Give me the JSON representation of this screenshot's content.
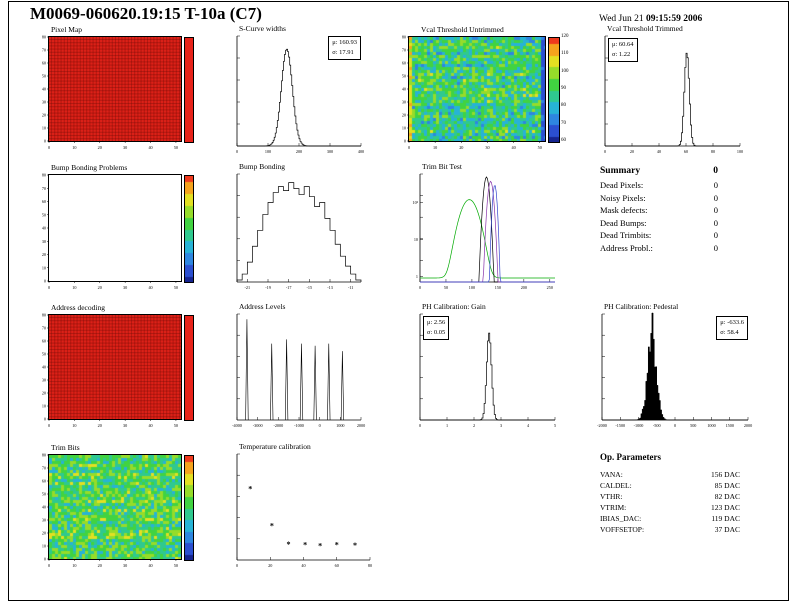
{
  "header": {
    "title": "M0069-060620.19:15 T-10a (C7)",
    "date_prefix": "Wed Jun 21 ",
    "time": "09:15:59 2006"
  },
  "colors": {
    "palette": [
      "#16248f",
      "#2b4fd0",
      "#2e86e0",
      "#27b3d6",
      "#2fc98f",
      "#41d341",
      "#96dc2a",
      "#e3e022",
      "#f5a31d",
      "#ef3a1d"
    ],
    "map_red": "#e8231a",
    "accent_black": "#000000"
  },
  "panels": {
    "pixel_map": {
      "title": "Pixel Map"
    },
    "scurve_widths": {
      "title": "S-Curve widths",
      "stats": {
        "mu": "μ: 160.93",
        "sigma": "σ: 17.91"
      }
    },
    "vcal_untrimmed": {
      "title": "Vcal Threshold Untrimmed"
    },
    "vcal_trimmed": {
      "title": "Vcal Threshold Trimmed",
      "stats": {
        "mu": "μ: 60.64",
        "sigma": "σ: 1.22"
      }
    },
    "bump_problems": {
      "title": "Bump Bonding Problems"
    },
    "bump_bonding": {
      "title": "Bump Bonding"
    },
    "trim_bit_test": {
      "title": "Trim Bit Test"
    },
    "address_decoding": {
      "title": "Address decoding"
    },
    "address_levels": {
      "title": "Address Levels"
    },
    "ph_gain": {
      "title": "PH Calibration: Gain",
      "stats": {
        "mu": "μ: 2.56",
        "sigma": "σ: 0.05"
      }
    },
    "ph_pedestal": {
      "title": "PH Calibration: Pedestal",
      "stats": {
        "mu": "μ: -633.6",
        "sigma": "σ: 58.4"
      }
    },
    "trim_bits": {
      "title": "Trim Bits"
    },
    "temp_cal": {
      "title": "Temperature calibration"
    }
  },
  "summary": {
    "title": "Summary",
    "total": "0",
    "rows": [
      {
        "label": "Dead Pixels:",
        "value": "0"
      },
      {
        "label": "Noisy Pixels:",
        "value": "0"
      },
      {
        "label": "Mask defects:",
        "value": "0"
      },
      {
        "label": "Dead Bumps:",
        "value": "0"
      },
      {
        "label": "Dead Trimbits:",
        "value": "0"
      },
      {
        "label": "Address Probl.:",
        "value": "0"
      }
    ]
  },
  "op_parameters": {
    "title": "Op. Parameters",
    "rows": [
      {
        "label": "VANA:",
        "value": "156 DAC"
      },
      {
        "label": "CALDEL:",
        "value": "85 DAC"
      },
      {
        "label": "VTHR:",
        "value": "82 DAC"
      },
      {
        "label": "VTRIM:",
        "value": "123 DAC"
      },
      {
        "label": "IBIAS_DAC:",
        "value": "119 DAC"
      },
      {
        "label": "VOFFSETOP:",
        "value": "37 DAC"
      }
    ]
  },
  "chart_data": [
    {
      "id": "pixel_map",
      "type": "heatmap",
      "style": "red",
      "title": "Pixel Map",
      "xlim": [
        0,
        52
      ],
      "ylim": [
        0,
        80
      ],
      "xticks": [
        0,
        10,
        20,
        30,
        40,
        50
      ],
      "yticks": [
        0,
        10,
        20,
        30,
        40,
        50,
        60,
        70,
        80
      ],
      "colorbar_style": "red"
    },
    {
      "id": "scurve",
      "type": "hist",
      "title": "S-Curve widths",
      "mu": 160.93,
      "sigma": 17.91,
      "xlim": [
        0,
        400
      ],
      "xticks": [
        0,
        100,
        200,
        300,
        400
      ],
      "peak": 0.88
    },
    {
      "id": "vcal_untrimmed",
      "type": "heatmap",
      "style": "noise",
      "title": "Vcal Threshold Untrimmed",
      "seed": 7,
      "base": 0.48,
      "spread": 0.42,
      "left_band": true,
      "right_band": true,
      "xlim": [
        0,
        52
      ],
      "ylim": [
        0,
        80
      ],
      "xticks": [
        0,
        10,
        20,
        30,
        40,
        50
      ],
      "yticks": [
        0,
        10,
        20,
        30,
        40,
        50,
        60,
        70,
        80
      ],
      "colorbar_style": "rainbow",
      "colorbar_ticks": [
        120,
        110,
        100,
        90,
        80,
        70,
        60
      ]
    },
    {
      "id": "vcal_trimmed",
      "type": "hist",
      "title": "Vcal Threshold Trimmed",
      "mu": 60.64,
      "sigma": 1.22,
      "draw_sigma": 1.8,
      "xlim": [
        0,
        100
      ],
      "xticks": [
        0,
        20,
        40,
        60,
        80,
        100
      ],
      "peak": 0.85
    },
    {
      "id": "bump_problems",
      "type": "heatmap",
      "style": "empty",
      "title": "Bump Bonding Problems",
      "xlim": [
        0,
        52
      ],
      "ylim": [
        0,
        80
      ],
      "xticks": [
        0,
        10,
        20,
        30,
        40,
        50
      ],
      "yticks": [
        0,
        10,
        20,
        30,
        40,
        50,
        60,
        70,
        80
      ],
      "colorbar_style": "rainbow"
    },
    {
      "id": "bump_bonding",
      "type": "steps",
      "title": "Bump Bonding",
      "xlim": [
        -22,
        -10
      ],
      "xticks": [
        -21,
        -19,
        -17,
        -15,
        -13,
        -11
      ],
      "values": [
        1,
        4,
        10,
        18,
        26,
        34,
        40,
        45,
        48,
        46,
        50,
        47,
        44,
        48,
        43,
        38,
        40,
        32,
        26,
        19,
        13,
        8,
        4,
        1
      ]
    },
    {
      "id": "trim_bit_test",
      "type": "multilog",
      "title": "Trim Bit Test",
      "xlim": [
        0,
        260
      ],
      "xticks": [
        0,
        50,
        100,
        150,
        200,
        250
      ],
      "ymax": 600,
      "ylabels": [
        {
          "v": 1,
          "label": "1"
        },
        {
          "v": 10,
          "label": "10"
        },
        {
          "v": 100,
          "label": "10²"
        }
      ],
      "series": [
        {
          "name": "trim bits on",
          "color": "#00aa00",
          "mu": 95,
          "sigma": 13,
          "peak": 120,
          "floor": 0.9
        },
        {
          "name": "trim bit test black",
          "color": "#000000",
          "mu": 128,
          "sigma": 4,
          "peak": 500
        },
        {
          "name": "trim bit test violet",
          "color": "#8833aa",
          "mu": 136,
          "sigma": 4,
          "peak": 380
        },
        {
          "name": "trim bit test blue",
          "color": "#3344cc",
          "mu": 144,
          "sigma": 3,
          "peak": 300
        }
      ]
    },
    {
      "id": "address_decoding",
      "type": "heatmap",
      "style": "red",
      "title": "Address decoding",
      "xlim": [
        0,
        52
      ],
      "ylim": [
        0,
        80
      ],
      "xticks": [
        0,
        10,
        20,
        30,
        40,
        50
      ],
      "yticks": [
        0,
        10,
        20,
        30,
        40,
        50,
        60,
        70,
        80
      ],
      "colorbar_style": "red"
    },
    {
      "id": "address_levels",
      "type": "spikes",
      "title": "Address Levels",
      "xlim": [
        -4000,
        2000
      ],
      "xticks": [
        -4000,
        -3000,
        -2000,
        -1000,
        0,
        1000,
        2000
      ],
      "positions": [
        -3520,
        -2320,
        -1600,
        -880,
        -220,
        440,
        1100
      ],
      "heights": [
        0.95,
        0.72,
        0.76,
        0.72,
        0.7,
        0.72,
        0.65
      ]
    },
    {
      "id": "ph_gain",
      "type": "hist",
      "title": "PH Calibration: Gain",
      "mu": 2.56,
      "sigma": 0.05,
      "draw_sigma": 0.09,
      "xlim": [
        0,
        5
      ],
      "xticks": [
        0,
        1,
        2,
        3,
        4,
        5
      ],
      "peak": 0.82
    },
    {
      "id": "ph_pedestal",
      "type": "hist",
      "title": "PH Calibration: Pedestal",
      "mu": -633.6,
      "sigma": 58.4,
      "draw_sigma": 120,
      "xlim": [
        -2000,
        2000
      ],
      "xticks": [
        -2000,
        -1500,
        -1000,
        -500,
        0,
        500,
        1000,
        1500,
        2000
      ],
      "peak": 0.8,
      "fill": true,
      "noisy": true
    },
    {
      "id": "trim_bits",
      "type": "heatmap",
      "style": "noise",
      "title": "Trim Bits",
      "seed": 11,
      "base": 0.55,
      "spread": 0.38,
      "xlim": [
        0,
        52
      ],
      "ylim": [
        0,
        80
      ],
      "xticks": [
        0,
        10,
        20,
        30,
        40,
        50
      ],
      "yticks": [
        0,
        10,
        20,
        30,
        40,
        50,
        60,
        70,
        80
      ],
      "colorbar_style": "rainbow"
    },
    {
      "id": "temp_cal",
      "type": "scatter",
      "title": "Temperature calibration",
      "marker": "*",
      "x": [
        8,
        21,
        31,
        41,
        50,
        60,
        71
      ],
      "y": [
        270,
        130,
        60,
        58,
        55,
        58,
        56
      ],
      "xlim": [
        0,
        80
      ],
      "ylim": [
        0,
        400
      ],
      "xticks": [
        0,
        20,
        40,
        60,
        80
      ]
    }
  ]
}
